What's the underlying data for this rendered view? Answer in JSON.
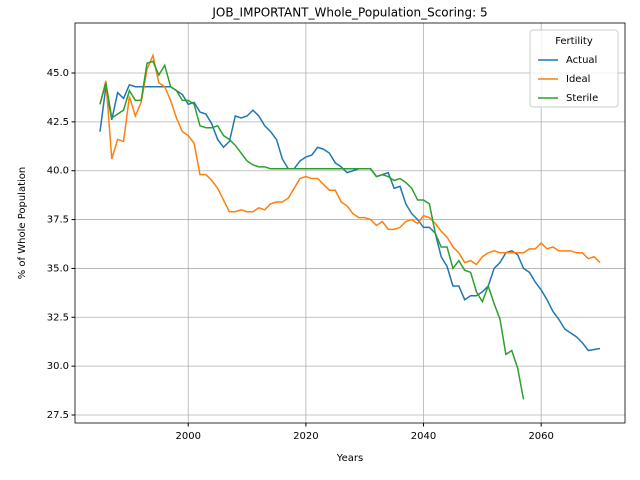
{
  "chart_data": {
    "type": "line",
    "title": "JOB_IMPORTANT_Whole_Population_Scoring: 5",
    "xlabel": "Years",
    "ylabel": "% of Whole Population",
    "legend_title": "Fertility",
    "legend_loc": "upper right",
    "grid": true,
    "x": [
      1985,
      1986,
      1987,
      1988,
      1989,
      1990,
      1991,
      1992,
      1993,
      1994,
      1995,
      1996,
      1997,
      1998,
      1999,
      2000,
      2001,
      2002,
      2003,
      2004,
      2005,
      2006,
      2007,
      2008,
      2009,
      2010,
      2011,
      2012,
      2013,
      2014,
      2015,
      2016,
      2017,
      2018,
      2019,
      2020,
      2021,
      2022,
      2023,
      2024,
      2025,
      2026,
      2027,
      2028,
      2029,
      2030,
      2031,
      2032,
      2033,
      2034,
      2035,
      2036,
      2037,
      2038,
      2039,
      2040,
      2041,
      2042,
      2043,
      2044,
      2045,
      2046,
      2047,
      2048,
      2049,
      2050,
      2051,
      2052,
      2053,
      2054,
      2055,
      2056,
      2057,
      2058,
      2059,
      2060,
      2061,
      2062,
      2063,
      2064,
      2065,
      2066,
      2067,
      2068,
      2069,
      2070
    ],
    "series": [
      {
        "name": "Actual",
        "color": "#1f77b4",
        "values": [
          42.0,
          44.3,
          42.6,
          44.0,
          43.7,
          44.4,
          44.3,
          44.3,
          44.3,
          44.3,
          44.3,
          44.3,
          44.3,
          44.1,
          43.9,
          43.4,
          43.5,
          43.0,
          42.9,
          42.4,
          41.6,
          41.2,
          41.5,
          42.8,
          42.7,
          42.8,
          43.1,
          42.8,
          42.3,
          42.0,
          41.6,
          40.6,
          40.1,
          40.1,
          40.5,
          40.7,
          40.8,
          41.2,
          41.1,
          40.9,
          40.4,
          40.2,
          39.9,
          40.0,
          40.1,
          40.1,
          40.1,
          39.7,
          39.8,
          39.9,
          39.1,
          39.2,
          38.3,
          37.8,
          37.5,
          37.1,
          37.1,
          36.8,
          35.6,
          35.1,
          34.1,
          34.1,
          33.4,
          33.6,
          33.6,
          33.8,
          34.1,
          35.0,
          35.3,
          35.8,
          35.9,
          35.7,
          35.0,
          34.8,
          34.3,
          33.9,
          33.4,
          32.8,
          32.4,
          31.9,
          31.7,
          31.5,
          31.2,
          30.8,
          30.85,
          30.9
        ]
      },
      {
        "name": "Ideal",
        "color": "#ff7f0e",
        "values": [
          43.4,
          44.6,
          40.6,
          41.6,
          41.5,
          43.8,
          42.8,
          43.5,
          45.2,
          45.9,
          44.5,
          44.3,
          43.6,
          42.7,
          42.0,
          41.8,
          41.4,
          39.8,
          39.8,
          39.5,
          39.1,
          38.5,
          37.9,
          37.9,
          38.0,
          37.9,
          37.9,
          38.1,
          38.0,
          38.3,
          38.4,
          38.4,
          38.6,
          39.1,
          39.6,
          39.7,
          39.6,
          39.6,
          39.3,
          39.0,
          39.0,
          38.4,
          38.2,
          37.8,
          37.6,
          37.6,
          37.5,
          37.2,
          37.4,
          37.0,
          37.0,
          37.1,
          37.4,
          37.5,
          37.3,
          37.7,
          37.6,
          37.3,
          36.9,
          36.6,
          36.1,
          35.8,
          35.3,
          35.4,
          35.2,
          35.6,
          35.8,
          35.9,
          35.8,
          35.8,
          35.8,
          35.8,
          35.8,
          36.0,
          36.0,
          36.3,
          36.0,
          36.1,
          35.9,
          35.9,
          35.9,
          35.8,
          35.8,
          35.5,
          35.6,
          35.3
        ]
      },
      {
        "name": "Sterile",
        "color": "#2ca02c",
        "values": [
          43.4,
          44.5,
          42.7,
          42.9,
          43.1,
          44.1,
          43.6,
          43.6,
          45.5,
          45.6,
          44.9,
          45.4,
          44.3,
          44.1,
          43.6,
          43.6,
          43.4,
          42.3,
          42.2,
          42.2,
          42.3,
          41.8,
          41.6,
          41.3,
          40.9,
          40.5,
          40.3,
          40.2,
          40.2,
          40.1,
          40.1,
          40.1,
          40.1,
          40.1,
          40.1,
          40.1,
          40.1,
          40.1,
          40.1,
          40.1,
          40.1,
          40.1,
          40.1,
          40.1,
          40.1,
          40.1,
          40.1,
          39.7,
          39.8,
          39.7,
          39.5,
          39.6,
          39.4,
          39.1,
          38.5,
          38.5,
          38.3,
          36.8,
          36.1,
          36.1,
          35.0,
          35.4,
          34.9,
          34.8,
          33.8,
          33.3,
          34.1,
          33.2,
          32.4,
          30.6,
          30.8,
          29.9,
          28.3,
          null,
          null,
          null,
          null,
          null,
          null,
          null,
          null,
          null,
          null,
          null,
          null,
          null
        ]
      }
    ],
    "xlim": [
      1980.75,
      2074.25
    ],
    "xticks": [
      2000,
      2020,
      2040,
      2060
    ],
    "ylim": [
      27.09,
      47.56
    ],
    "yticks": [
      27.5,
      {
        "value": 30,
        "label": "30.0"
      },
      32.5,
      {
        "value": 35,
        "label": "35.0"
      },
      37.5,
      {
        "value": 40,
        "label": "40.0"
      },
      42.5,
      {
        "value": 45,
        "label": "45.0"
      }
    ]
  }
}
